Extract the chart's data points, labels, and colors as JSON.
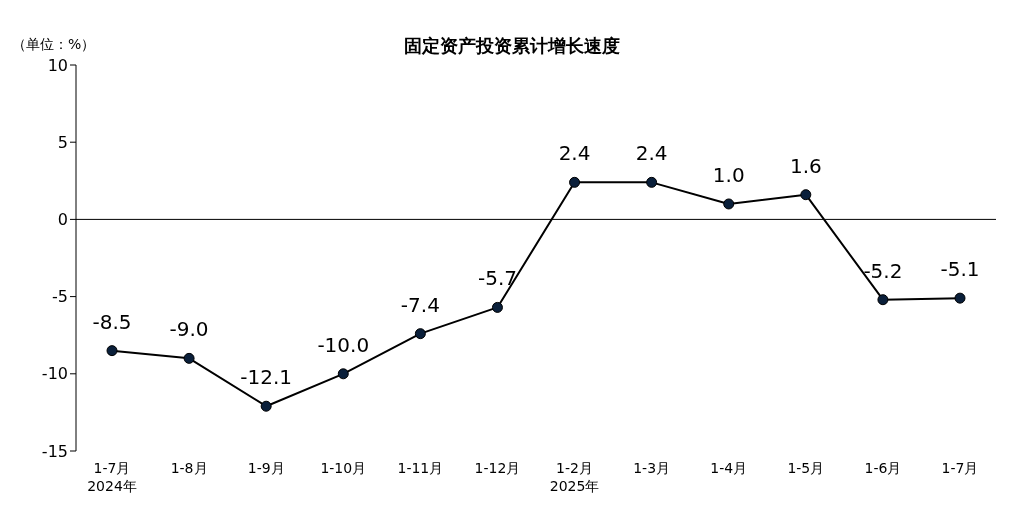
{
  "chart_data": {
    "type": "line",
    "title": "固定资产投资累计增长速度",
    "ylabel": "（单位：%）",
    "categories": [
      "1-7月\n2024年",
      "1-8月",
      "1-9月",
      "1-10月",
      "1-11月",
      "1-12月",
      "1-2月\n2025年",
      "1-3月",
      "1-4月",
      "1-5月",
      "1-6月",
      "1-7月"
    ],
    "series": [
      {
        "color": "#000000",
        "values": [
          -8.5,
          -9.0,
          -12.1,
          -10.0,
          -7.4,
          -5.7,
          2.4,
          2.4,
          1.0,
          1.6,
          -5.2,
          -5.1
        ]
      }
    ],
    "value_labels": [
      "-8.5",
      "-9.0",
      "-12.1",
      "-10.0",
      "-7.4",
      "-5.7",
      "2.4",
      "2.4",
      "1.0",
      "1.6",
      "-5.2",
      "-5.1"
    ],
    "ylim": [
      -15,
      10
    ],
    "yticks": [
      -15,
      -10,
      -5,
      0,
      5,
      10
    ],
    "ref_lines": [
      {
        "axis": "y",
        "value": 0,
        "color": "#000000"
      }
    ],
    "grid": false,
    "legend": false,
    "marker": "circle",
    "line_style": "solid"
  }
}
